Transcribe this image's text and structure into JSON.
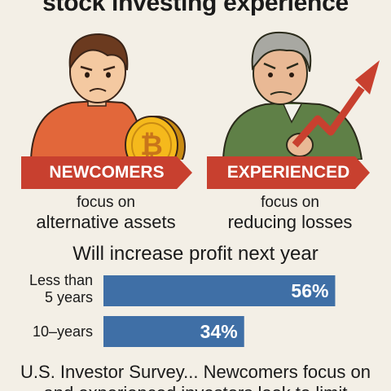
{
  "header": {
    "title": "stock investing experience"
  },
  "groups": {
    "newcomers": {
      "label": "NEWCOMERS",
      "focus_prefix": "focus on",
      "focus_value": "alternative assets",
      "icon": "bitcoin-icon"
    },
    "experienced": {
      "label": "EXPERIENCED",
      "focus_prefix": "focus on",
      "focus_value": "reducing losses",
      "icon": "trend-arrow-icon"
    }
  },
  "colors": {
    "banner": "#c8402f",
    "bar": "#3f6fa6",
    "background": "#f3efe6"
  },
  "chart_data": {
    "type": "bar",
    "orientation": "horizontal",
    "title": "Will increase profit next year",
    "categories": [
      "Less than 5 years",
      "10–years"
    ],
    "category_lines": [
      [
        "Less than",
        "5 years"
      ],
      [
        "10–years"
      ]
    ],
    "values": [
      56,
      34
    ],
    "value_labels": [
      "56%",
      "34%"
    ],
    "xlim": [
      0,
      100
    ],
    "grid": false,
    "legend": "none"
  },
  "footer": {
    "line1": "U.S. Investor Survey... Newcomers focus on",
    "line2": "and experienced investors look to limit"
  }
}
